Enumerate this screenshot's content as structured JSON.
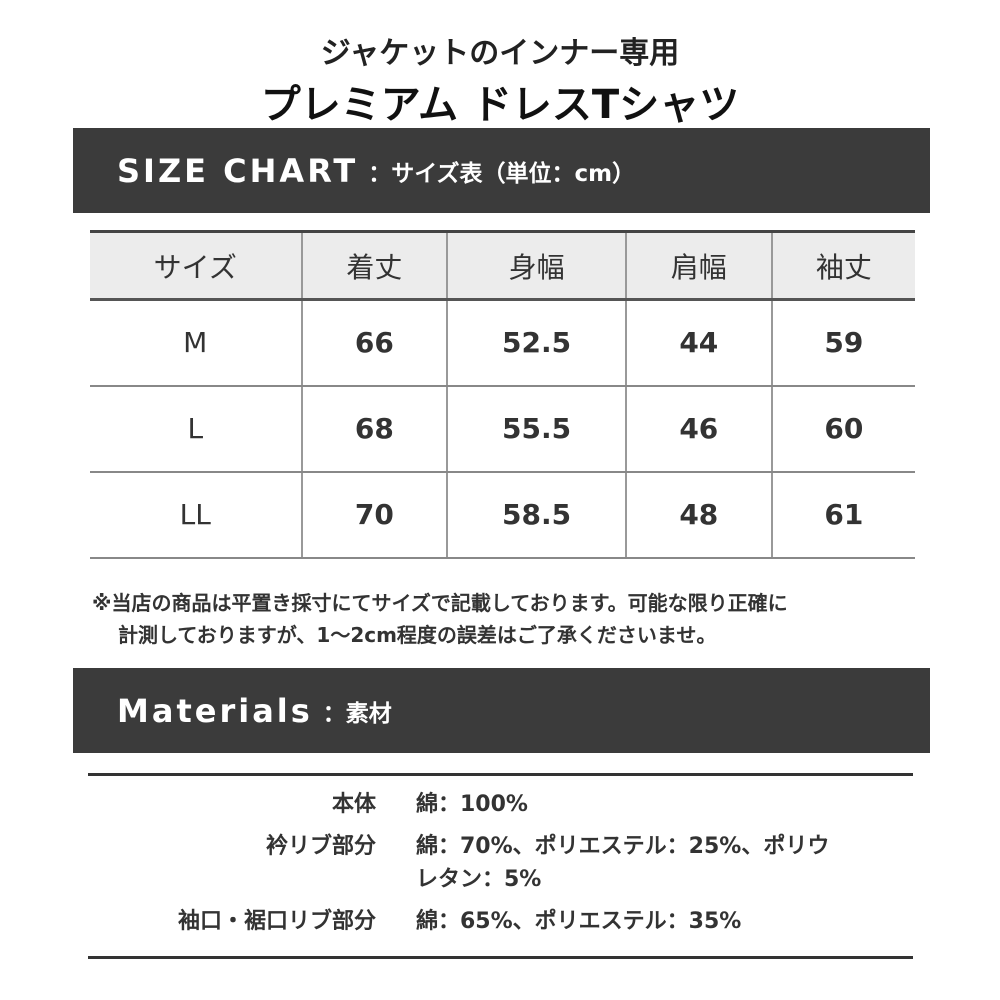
{
  "title_line1": "ジャケットのインナー専用",
  "title_line2": "プレミアム ドレスTシャツ",
  "size_chart": {
    "heading_en": "SIZE CHART",
    "heading_jp": "：サイズ表（単位：cm）",
    "columns": [
      "サイズ",
      "着丈",
      "身幅",
      "肩幅",
      "袖丈"
    ],
    "rows": [
      [
        "M",
        "66",
        "52.5",
        "44",
        "59"
      ],
      [
        "L",
        "68",
        "55.5",
        "46",
        "60"
      ],
      [
        "LL",
        "70",
        "58.5",
        "48",
        "61"
      ]
    ]
  },
  "note": {
    "line1": "※当店の商品は平置き採寸にてサイズで記載しております。可能な限り正確に",
    "line2": "計測しておりますが、1～2cm程度の誤差はご了承くださいませ。"
  },
  "materials": {
    "heading_en": "Materials",
    "heading_jp": "：素材",
    "items": [
      {
        "label": "本体",
        "value": "綿：100%"
      },
      {
        "label": "衿リブ部分",
        "value": "綿：70%、ポリエステル：25%、ポリウレタン：5%"
      },
      {
        "label": "袖口・裾口リブ部分",
        "value": "綿：65%、ポリエステル：35%"
      }
    ]
  }
}
